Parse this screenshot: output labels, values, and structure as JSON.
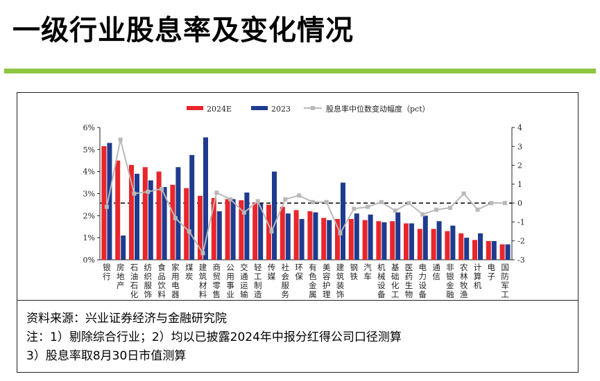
{
  "page": {
    "title": "一级行业股息率及变化情况",
    "accent_color": "#8dc63f",
    "notes": [
      "资料来源：兴业证券经济与金融研究院",
      "注：1）剔除综合行业；2）均以已披露2024年中报分红得公司口径测算",
      "3）股息率取8月30日市值测算"
    ]
  },
  "chart_data": {
    "type": "bar",
    "title": "",
    "xlabel": "",
    "ylabel": "",
    "ylim": [
      0,
      6
    ],
    "y2lim": [
      -3,
      4
    ],
    "yticks": [
      "0%",
      "1%",
      "2%",
      "3%",
      "4%",
      "5%",
      "6%"
    ],
    "y2ticks": [
      "-3",
      "-2",
      "-1",
      "0",
      "1",
      "2",
      "3",
      "4"
    ],
    "legend": [
      "2024E",
      "2023",
      "股息率中位数变动幅度（pct）"
    ],
    "legend_position": "top",
    "categories": [
      "银行",
      "房地产",
      "石油石化",
      "纺织服饰",
      "食品饮料",
      "家用电器",
      "煤炭",
      "建筑材料",
      "商贸零售",
      "公用事业",
      "交通运输",
      "轻工制造",
      "传媒",
      "社会服务",
      "环保",
      "有色金属",
      "美容护理",
      "建筑装饰",
      "钢铁",
      "汽车",
      "机械设备",
      "基础化工",
      "医药生物",
      "电力设备",
      "通信",
      "非银金融",
      "农林牧渔",
      "计算机",
      "电子",
      "国防军工"
    ],
    "series": [
      {
        "name": "2024E",
        "color": "#e8262b",
        "axis": "left",
        "values": [
          5.15,
          4.5,
          4.3,
          4.2,
          4.0,
          3.4,
          3.25,
          2.9,
          2.8,
          2.75,
          2.7,
          2.6,
          2.5,
          2.4,
          2.25,
          2.2,
          1.9,
          1.85,
          1.85,
          1.8,
          1.75,
          1.75,
          1.65,
          1.4,
          1.4,
          1.3,
          1.2,
          0.9,
          0.85,
          0.7
        ]
      },
      {
        "name": "2023",
        "color": "#1f3b8f",
        "axis": "left",
        "values": [
          5.3,
          1.1,
          3.9,
          3.6,
          3.3,
          4.2,
          4.75,
          5.55,
          2.2,
          2.75,
          3.05,
          2.55,
          4.0,
          2.1,
          1.85,
          2.15,
          1.8,
          3.5,
          2.1,
          2.05,
          1.7,
          2.15,
          1.65,
          2.0,
          1.75,
          1.55,
          1.0,
          1.2,
          0.85,
          0.7
        ]
      },
      {
        "name": "股息率中位数变动幅度（pct）",
        "color": "#b9b9b9",
        "axis": "right",
        "type": "line",
        "values": [
          -0.2,
          3.35,
          0.5,
          0.6,
          0.75,
          -0.8,
          -1.5,
          -2.65,
          0.55,
          0.2,
          -0.5,
          0.1,
          -1.5,
          0.2,
          0.4,
          0.05,
          0.05,
          -1.6,
          -0.3,
          -0.2,
          0.05,
          -0.4,
          0.0,
          -0.6,
          -0.35,
          -0.25,
          0.5,
          -0.35,
          0.0,
          0.0
        ]
      }
    ],
    "reference_line": {
      "axis": "right",
      "value": 0,
      "style": "dashed"
    }
  }
}
